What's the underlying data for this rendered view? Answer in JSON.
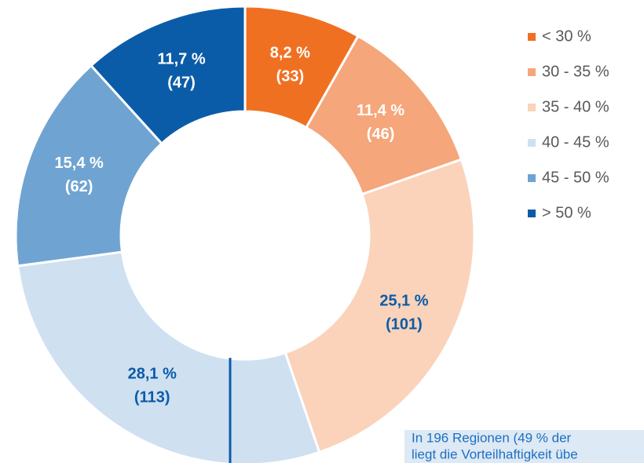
{
  "chart_data": {
    "type": "donut",
    "categories": [
      "< 30 %",
      "30 - 35 %",
      "35 - 40 %",
      "40 - 45 %",
      "45 - 50 %",
      "> 50 %"
    ],
    "values": [
      8.2,
      11.4,
      25.1,
      28.1,
      15.4,
      11.7
    ],
    "value_labels": [
      "8,2 %",
      "11,4 %",
      "25,1 %",
      "28,1 %",
      "15,4 %",
      "11,7 %"
    ],
    "counts": [
      33,
      46,
      101,
      113,
      62,
      47
    ],
    "count_labels": [
      "(33)",
      "(46)",
      "(101)",
      "(113)",
      "(62)",
      "(47)"
    ],
    "colors": [
      "#f07022",
      "#f5a67a",
      "#fad3ba",
      "#cfe0f1",
      "#6fa4d2",
      "#0b5ca8"
    ],
    "label_colors": [
      "#ffffff",
      "#ffffff",
      "#0b5ca8",
      "#0b5ca8",
      "#ffffff",
      "#ffffff"
    ],
    "legend": "right",
    "annotation": [
      "In 196 Regionen (49 % der",
      "liegt die Vorteilhaftigkeit übe"
    ]
  }
}
